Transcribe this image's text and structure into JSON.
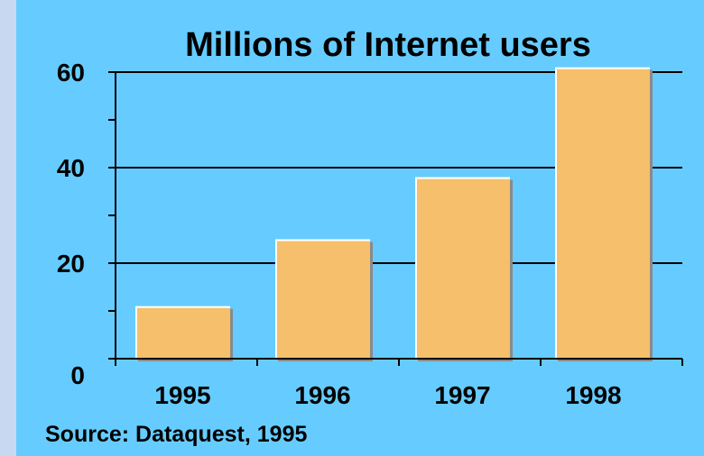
{
  "chart_data": {
    "type": "bar",
    "title": "Millions of Internet users",
    "categories": [
      "1995",
      "1996",
      "1997",
      "1998"
    ],
    "values": [
      11,
      25,
      38,
      61
    ],
    "ylim": [
      0,
      60
    ],
    "yticks": [
      "0",
      "20",
      "40",
      "60"
    ],
    "xlabel": "",
    "ylabel": "",
    "grid": true,
    "source": "Source: Dataquest, 1995",
    "colors": {
      "background": "#66ccff",
      "bar": "#f5bf6b",
      "bar_highlight": "#ffffff",
      "bar_shadow": "#8a8a8a"
    }
  }
}
